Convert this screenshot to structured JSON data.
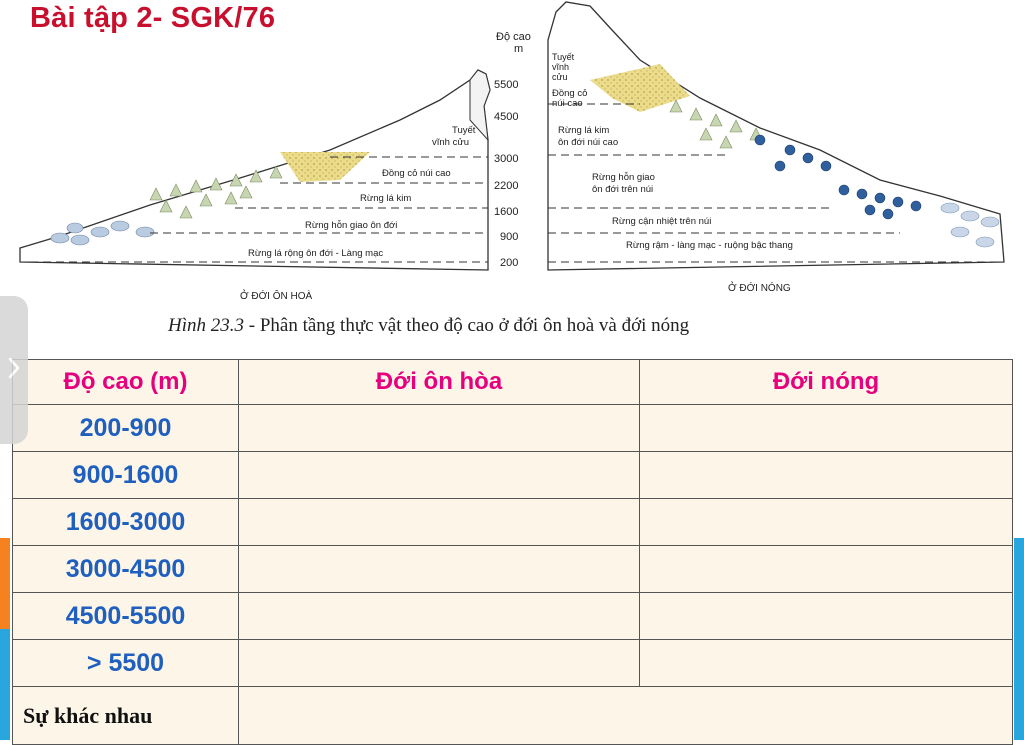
{
  "title": "Bài tập 2- SGK/76",
  "figure": {
    "axis_title_line1": "Độ cao",
    "axis_title_line2": "m",
    "altitude_ticks": [
      "5500",
      "4500",
      "3000",
      "2200",
      "1600",
      "900",
      "200"
    ],
    "left_zone_label": "Ở ĐỚI ÔN HOÀ",
    "right_zone_label": "Ở ĐỚI NÓNG",
    "left_layers": {
      "snow_line1": "Tuyết",
      "snow_line2": "vĩnh cửu",
      "alpine_grass": "Đồng cỏ núi cao",
      "conifer": "Rừng lá kim",
      "mixed": "Rừng hỗn giao ôn đới",
      "broadleaf": "Rừng lá rộng ôn đới - Làng mạc"
    },
    "right_layers": {
      "snow_line1": "Tuyết",
      "snow_line2": "vĩnh",
      "snow_line3": "cửu",
      "grass_line1": "Đồng cỏ",
      "grass_line2": "núi cao",
      "conifer_line1": "Rừng lá kim",
      "conifer_line2": "ôn đới núi cao",
      "mixed_line1": "Rừng hỗn giao",
      "mixed_line2": "ôn đới trên núi",
      "subtropical": "Rừng cận nhiệt trên núi",
      "rainforest": "Rừng rậm - làng mạc - ruộng bậc thang"
    }
  },
  "caption": {
    "figure_number": "Hình 23.3",
    "text": " - Phân tầng thực vật theo độ cao ở đới ôn hoà và đới nóng"
  },
  "table": {
    "headers": [
      "Độ cao (m)",
      "Đới ôn hòa",
      "Đới nóng"
    ],
    "rows": [
      {
        "altitude": "200-900",
        "temperate": "",
        "tropical": ""
      },
      {
        "altitude": "900-1600",
        "temperate": "",
        "tropical": ""
      },
      {
        "altitude": "1600-3000",
        "temperate": "",
        "tropical": ""
      },
      {
        "altitude": "3000-4500",
        "temperate": "",
        "tropical": ""
      },
      {
        "altitude": "4500-5500",
        "temperate": "",
        "tropical": ""
      },
      {
        "altitude": "> 5500",
        "temperate": "",
        "tropical": ""
      }
    ],
    "difference_label": "Sự khác nhau",
    "difference_value": ""
  },
  "colors": {
    "title": "#c8102e",
    "header_text": "#e6007e",
    "altitude_text": "#1f5fbf",
    "table_background": "#fdf6e8",
    "grass_zone": "#e8d98a"
  },
  "icons": [
    "chevron-right-icon"
  ]
}
